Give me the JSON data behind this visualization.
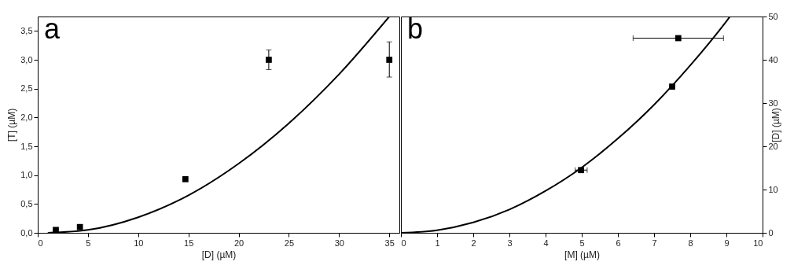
{
  "chart_data": [
    {
      "type": "scatter",
      "xlabel": "[D] (µM)",
      "ylabel": "[T] (µM)",
      "xlim": [
        0,
        36
      ],
      "ylim": [
        0,
        3.75
      ],
      "xticks": [
        0,
        5,
        10,
        15,
        20,
        25,
        30,
        35
      ],
      "yticks": [
        {
          "value": 0,
          "label": "0,0"
        },
        {
          "value": 0.5,
          "label": "0,5"
        },
        {
          "value": 1,
          "label": "1,0"
        },
        {
          "value": 1.5,
          "label": "1,5"
        },
        {
          "value": 2,
          "label": "2,0"
        },
        {
          "value": 2.5,
          "label": "2,5"
        },
        {
          "value": 3,
          "label": "3,0"
        },
        {
          "value": 3.5,
          "label": "3,5"
        }
      ],
      "grid": false,
      "annotations": [
        "a"
      ],
      "series": [
        {
          "marker": "square",
          "color": "#000000",
          "x": [
            1.8,
            4.2,
            14.7,
            23,
            35
          ],
          "values": [
            0.05,
            0.1,
            0.93,
            3.0,
            3.0
          ],
          "errors": [
            null,
            null,
            null,
            [
              2.83,
              3.17
            ],
            [
              2.7,
              3.31
            ]
          ]
        },
        {
          "type": "line",
          "color": "#000000",
          "x": [
            1,
            5,
            10,
            15,
            20,
            25,
            30,
            35
          ],
          "values": [
            0,
            0.05,
            0.27,
            0.65,
            1.2,
            1.9,
            2.75,
            3.75
          ]
        }
      ]
    },
    {
      "type": "scatter",
      "xlabel": "[M] (µM)",
      "y2label": "[D] (µM)",
      "xlim": [
        0,
        10
      ],
      "y2lim": [
        0,
        50
      ],
      "xticks": [
        0,
        1,
        2,
        3,
        4,
        5,
        6,
        7,
        8,
        9,
        10
      ],
      "y2ticks": [
        0,
        10,
        20,
        30,
        40,
        50
      ],
      "grid": false,
      "annotations": [
        "b"
      ],
      "series": [
        {
          "marker": "square",
          "axis": "y2",
          "color": "#000000",
          "x": [
            4.98,
            7.5,
            7.67
          ],
          "values": [
            14.5,
            33.8,
            45
          ],
          "xerrors": [
            [
              4.82,
              5.15
            ],
            null,
            [
              6.42,
              8.92
            ]
          ]
        },
        {
          "type": "line",
          "axis": "y2",
          "color": "#000000",
          "x": [
            0,
            1,
            2,
            3,
            4,
            5,
            6,
            7,
            8,
            9,
            9.1
          ],
          "values": [
            0,
            0.6,
            2.4,
            5.4,
            9.7,
            15.1,
            21.8,
            29.6,
            38.7,
            48.9,
            50
          ]
        }
      ]
    }
  ]
}
